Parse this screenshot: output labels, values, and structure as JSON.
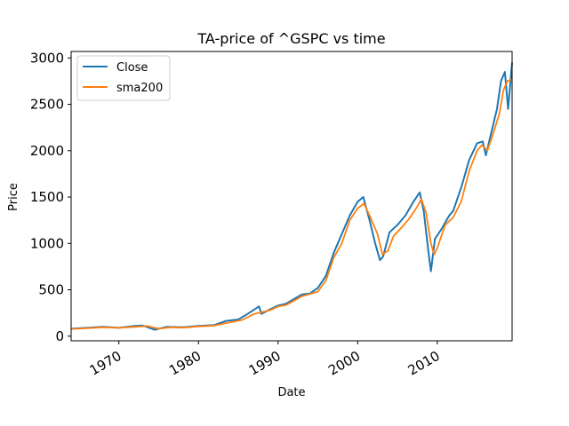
{
  "chart_data": {
    "type": "line",
    "title": "TA-price of ^GSPC vs time",
    "xlabel": "Date",
    "ylabel": "Price",
    "xlim": [
      1964.0,
      2019.4
    ],
    "ylim": [
      -50,
      3070
    ],
    "xticks": [
      1970,
      1980,
      1990,
      2000,
      2010
    ],
    "xtick_labels": [
      "1970",
      "1980",
      "1990",
      "2000",
      "2010"
    ],
    "yticks": [
      0,
      500,
      1000,
      1500,
      2000,
      2500,
      3000
    ],
    "ytick_labels": [
      "0",
      "500",
      "1000",
      "1500",
      "2000",
      "2500",
      "3000"
    ],
    "legend_position": "top-left",
    "grid": false,
    "series": [
      {
        "name": "Close",
        "color": "#1f77b4",
        "x": [
          1964.0,
          1966.0,
          1968.0,
          1970.0,
          1972.0,
          1973.0,
          1974.5,
          1976.0,
          1978.0,
          1980.0,
          1982.0,
          1983.5,
          1985.0,
          1986.0,
          1987.6,
          1987.9,
          1989.0,
          1990.0,
          1991.0,
          1993.0,
          1994.0,
          1995.0,
          1996.0,
          1997.0,
          1998.0,
          1999.0,
          2000.0,
          2000.7,
          2001.5,
          2002.2,
          2002.8,
          2003.2,
          2004.0,
          2005.0,
          2006.0,
          2007.0,
          2007.8,
          2008.3,
          2008.9,
          2009.2,
          2009.7,
          2010.5,
          2011.5,
          2012.0,
          2013.0,
          2014.0,
          2015.0,
          2015.7,
          2016.1,
          2016.8,
          2017.5,
          2018.0,
          2018.5,
          2018.9,
          2019.4
        ],
        "y": [
          80,
          90,
          100,
          90,
          110,
          115,
          70,
          100,
          95,
          110,
          120,
          165,
          180,
          230,
          320,
          240,
          290,
          330,
          350,
          450,
          460,
          520,
          650,
          900,
          1100,
          1300,
          1450,
          1500,
          1250,
          1000,
          820,
          860,
          1120,
          1200,
          1300,
          1450,
          1550,
          1350,
          900,
          700,
          1050,
          1150,
          1300,
          1350,
          1600,
          1900,
          2080,
          2100,
          1950,
          2200,
          2450,
          2750,
          2850,
          2450,
          2950
        ]
      },
      {
        "name": "sma200",
        "color": "#ff7f0e",
        "x": [
          1964.0,
          1966.0,
          1968.0,
          1970.0,
          1972.0,
          1973.5,
          1975.0,
          1976.5,
          1978.0,
          1980.0,
          1982.0,
          1984.0,
          1985.5,
          1987.0,
          1988.0,
          1989.0,
          1990.0,
          1991.0,
          1993.0,
          1994.0,
          1995.0,
          1996.0,
          1997.0,
          1998.0,
          1999.0,
          2000.0,
          2000.8,
          2001.5,
          2002.5,
          2003.1,
          2003.8,
          2004.5,
          2005.5,
          2006.5,
          2007.5,
          2008.0,
          2008.6,
          2009.2,
          2009.6,
          2010.0,
          2011.0,
          2012.0,
          2013.0,
          2014.0,
          2015.0,
          2015.6,
          2016.3,
          2017.0,
          2017.8,
          2018.3,
          2018.8,
          2019.4
        ],
        "y": [
          78,
          85,
          95,
          90,
          100,
          110,
          80,
          95,
          92,
          105,
          115,
          150,
          175,
          240,
          260,
          280,
          320,
          335,
          430,
          455,
          480,
          600,
          850,
          1000,
          1250,
          1380,
          1430,
          1300,
          1100,
          880,
          920,
          1080,
          1170,
          1270,
          1400,
          1480,
          1330,
          1000,
          880,
          950,
          1200,
          1280,
          1450,
          1780,
          2000,
          2060,
          2000,
          2180,
          2400,
          2650,
          2750,
          2770
        ]
      }
    ]
  }
}
